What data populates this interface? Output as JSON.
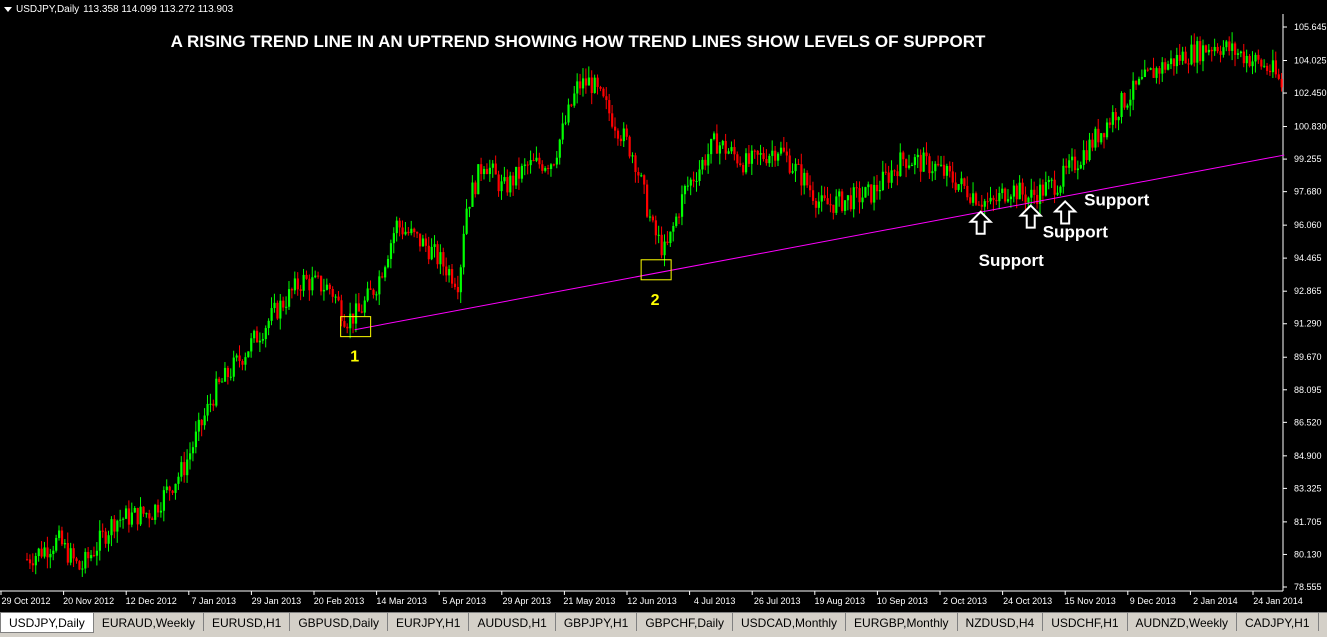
{
  "symbol_info": {
    "symbol": "USDJPY,Daily",
    "ohlc": "113.358 114.099 113.272 113.903"
  },
  "chart_data": {
    "type": "candlestick",
    "title": "A RISING TREND LINE IN AN UPTREND SHOWING HOW TREND LINES SHOW LEVELS OF SUPPORT",
    "x_ticks": [
      "29 Oct 2012",
      "20 Nov 2012",
      "12 Dec 2012",
      "7 Jan 2013",
      "29 Jan 2013",
      "20 Feb 2013",
      "14 Mar 2013",
      "5 Apr 2013",
      "29 Apr 2013",
      "21 May 2013",
      "12 Jun 2013",
      "4 Jul 2013",
      "26 Jul 2013",
      "19 Aug 2013",
      "10 Sep 2013",
      "2 Oct 2013",
      "24 Oct 2013",
      "15 Nov 2013",
      "9 Dec 2013",
      "2 Jan 2014",
      "24 Jan 2014"
    ],
    "y_ticks": [
      "105.645",
      "104.025",
      "102.450",
      "100.830",
      "99.255",
      "97.680",
      "96.060",
      "94.465",
      "92.865",
      "91.290",
      "89.670",
      "88.095",
      "86.520",
      "84.900",
      "83.325",
      "81.705",
      "80.130",
      "78.555"
    ],
    "ylim": [
      78.555,
      105.645
    ],
    "up_color": "#00ff00",
    "down_color": "#ff0000",
    "trendline_color": "#ff00ff",
    "annotation_color": "#ffff00",
    "close_path": [
      {
        "x": 0.0,
        "y": 79.9
      },
      {
        "x": 0.5,
        "y": 80.8
      },
      {
        "x": 0.85,
        "y": 79.4
      },
      {
        "x": 1.4,
        "y": 81.8
      },
      {
        "x": 2.0,
        "y": 82.2
      },
      {
        "x": 2.5,
        "y": 84.3
      },
      {
        "x": 3.0,
        "y": 88.0
      },
      {
        "x": 3.5,
        "y": 90.0
      },
      {
        "x": 4.0,
        "y": 92.0
      },
      {
        "x": 4.4,
        "y": 93.4
      },
      {
        "x": 4.85,
        "y": 93.0
      },
      {
        "x": 5.1,
        "y": 91.5
      },
      {
        "x": 5.3,
        "y": 91.8
      },
      {
        "x": 5.6,
        "y": 93.3
      },
      {
        "x": 5.9,
        "y": 96.1
      },
      {
        "x": 6.4,
        "y": 95.0
      },
      {
        "x": 6.9,
        "y": 93.3
      },
      {
        "x": 7.0,
        "y": 96.8
      },
      {
        "x": 7.3,
        "y": 99.2
      },
      {
        "x": 7.6,
        "y": 97.8
      },
      {
        "x": 8.0,
        "y": 98.9
      },
      {
        "x": 8.4,
        "y": 99.2
      },
      {
        "x": 8.8,
        "y": 102.8
      },
      {
        "x": 9.0,
        "y": 103.0
      },
      {
        "x": 9.4,
        "y": 101.0
      },
      {
        "x": 9.7,
        "y": 99.4
      },
      {
        "x": 10.0,
        "y": 95.8
      },
      {
        "x": 10.2,
        "y": 94.7
      },
      {
        "x": 10.5,
        "y": 97.7
      },
      {
        "x": 11.0,
        "y": 100.1
      },
      {
        "x": 11.5,
        "y": 99.0
      },
      {
        "x": 12.0,
        "y": 99.8
      },
      {
        "x": 12.4,
        "y": 98.3
      },
      {
        "x": 12.7,
        "y": 97.0
      },
      {
        "x": 13.0,
        "y": 97.2
      },
      {
        "x": 13.5,
        "y": 97.6
      },
      {
        "x": 14.0,
        "y": 99.3
      },
      {
        "x": 14.5,
        "y": 98.9
      },
      {
        "x": 15.0,
        "y": 97.8
      },
      {
        "x": 15.4,
        "y": 97.0
      },
      {
        "x": 15.7,
        "y": 97.9
      },
      {
        "x": 16.0,
        "y": 97.4
      },
      {
        "x": 16.5,
        "y": 98.2
      },
      {
        "x": 17.0,
        "y": 100.0
      },
      {
        "x": 17.5,
        "y": 102.0
      },
      {
        "x": 18.0,
        "y": 103.5
      },
      {
        "x": 18.5,
        "y": 104.3
      },
      {
        "x": 19.0,
        "y": 104.8
      },
      {
        "x": 19.5,
        "y": 104.2
      },
      {
        "x": 19.9,
        "y": 103.5
      },
      {
        "x": 20.1,
        "y": 102.5
      }
    ],
    "trendline": {
      "x1": 5.25,
      "y1": 91.0,
      "x2": 20.1,
      "y2": 99.45
    },
    "annotations": [
      {
        "label": "1",
        "x": 5.25,
        "y": 91.15
      },
      {
        "label": "2",
        "x": 10.05,
        "y": 93.9
      }
    ],
    "support_labels": [
      {
        "label": "Support",
        "arrow_x": 15.25,
        "arrow_y": 96.9
      },
      {
        "label": "Support",
        "arrow_x": 16.05,
        "arrow_y": 97.2
      },
      {
        "label": "Support",
        "arrow_x": 16.6,
        "arrow_y": 97.4
      }
    ]
  },
  "tabs": [
    "USDJPY,Daily",
    "EURAUD,Weekly",
    "EURUSD,H1",
    "GBPUSD,Daily",
    "EURJPY,H1",
    "AUDUSD,H1",
    "GBPJPY,H1",
    "GBPCHF,Daily",
    "USDCAD,Monthly",
    "EURGBP,Monthly",
    "NZDUSD,H4",
    "USDCHF,H1",
    "AUDNZD,Weekly",
    "CADJPY,H1"
  ]
}
